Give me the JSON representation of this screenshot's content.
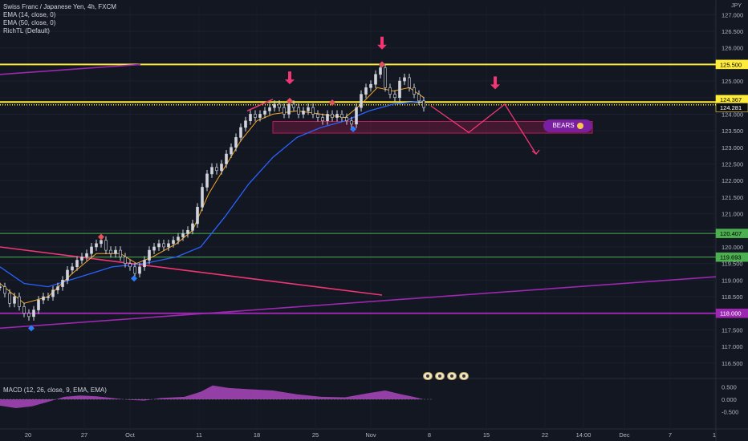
{
  "legend": {
    "symbol": "Swiss Franc / Japanese Yen, 4h, FXCM",
    "ema14": "EMA (14, close, 0)",
    "ema50": "EMA (50, close, 0)",
    "richtl": "RichTL (Default)",
    "macd": "MACD (12, 26, close, 9, EMA, EMA)"
  },
  "currency": "JPY",
  "annotation": {
    "bears_label": "BEARS"
  },
  "price_tags": [
    {
      "text": "125.500",
      "kind": "yellow"
    },
    {
      "text": "124.367",
      "kind": "yellow"
    },
    {
      "text": "124.281",
      "kind": "dark"
    },
    {
      "text": "120.407",
      "kind": "green"
    },
    {
      "text": "119.693",
      "kind": "green"
    },
    {
      "text": "118.000",
      "kind": "purple"
    }
  ],
  "colors": {
    "background": "#131722",
    "up": "#d1d4dc",
    "ema14": "#f5a623",
    "ema50": "#2962ff",
    "yellow": "#ffeb3b",
    "green": "#4caf50",
    "purple": "#9c27b0",
    "pink": "#f23674",
    "macd_hist": "#ab47bc"
  },
  "chart_data": {
    "type": "line",
    "title": "Swiss Franc / Japanese Yen, 4h, FXCM",
    "x_ticks": [
      "20",
      "27",
      "Oct",
      "11",
      "18",
      "25",
      "Nov",
      "8",
      "15",
      "22",
      "14:00",
      "Dec",
      "7",
      "1"
    ],
    "y_ticks": [
      "127.000",
      "126.500",
      "126.000",
      "125.500",
      "125.000",
      "124.500",
      "124.000",
      "123.500",
      "123.000",
      "122.500",
      "122.000",
      "121.500",
      "121.000",
      "120.500",
      "120.000",
      "119.500",
      "119.000",
      "118.500",
      "118.000",
      "117.500",
      "117.000",
      "116.500"
    ],
    "ylim": [
      116.35,
      127.2
    ],
    "macd_ticks": [
      "0.500",
      "0.000",
      "-0.500"
    ],
    "macd_ylim": [
      -0.7,
      0.7
    ],
    "levels": [
      {
        "value": 125.5,
        "label": "125.500",
        "color": "yellow"
      },
      {
        "value": 124.367,
        "label": "124.367",
        "color": "yellow"
      },
      {
        "value": 124.281,
        "label": "124.281",
        "color": "yellow",
        "style": "dotted"
      },
      {
        "value": 120.407,
        "label": "120.407",
        "color": "green"
      },
      {
        "value": 119.693,
        "label": "119.693",
        "color": "green"
      },
      {
        "value": 118.0,
        "label": "118.000",
        "color": "purple"
      }
    ],
    "price_path": [
      {
        "x": 0,
        "y": 118.8
      },
      {
        "x": 6,
        "y": 118.6
      },
      {
        "x": 12,
        "y": 118.3
      },
      {
        "x": 18,
        "y": 118.5
      },
      {
        "x": 24,
        "y": 118.2
      },
      {
        "x": 30,
        "y": 118.0
      },
      {
        "x": 36,
        "y": 117.9
      },
      {
        "x": 42,
        "y": 118.1
      },
      {
        "x": 48,
        "y": 118.4
      },
      {
        "x": 54,
        "y": 118.5
      },
      {
        "x": 60,
        "y": 118.5
      },
      {
        "x": 66,
        "y": 118.7
      },
      {
        "x": 72,
        "y": 118.8
      },
      {
        "x": 78,
        "y": 119.0
      },
      {
        "x": 84,
        "y": 119.3
      },
      {
        "x": 90,
        "y": 119.4
      },
      {
        "x": 96,
        "y": 119.6
      },
      {
        "x": 102,
        "y": 119.7
      },
      {
        "x": 108,
        "y": 119.8
      },
      {
        "x": 114,
        "y": 120.0
      },
      {
        "x": 120,
        "y": 120.1
      },
      {
        "x": 126,
        "y": 120.2
      },
      {
        "x": 132,
        "y": 119.9
      },
      {
        "x": 138,
        "y": 119.8
      },
      {
        "x": 144,
        "y": 119.9
      },
      {
        "x": 150,
        "y": 119.7
      },
      {
        "x": 156,
        "y": 119.5
      },
      {
        "x": 162,
        "y": 119.4
      },
      {
        "x": 168,
        "y": 119.2
      },
      {
        "x": 174,
        "y": 119.4
      },
      {
        "x": 180,
        "y": 119.6
      },
      {
        "x": 186,
        "y": 119.9
      },
      {
        "x": 192,
        "y": 120.0
      },
      {
        "x": 198,
        "y": 120.1
      },
      {
        "x": 204,
        "y": 120.0
      },
      {
        "x": 210,
        "y": 120.1
      },
      {
        "x": 216,
        "y": 120.2
      },
      {
        "x": 222,
        "y": 120.3
      },
      {
        "x": 228,
        "y": 120.4
      },
      {
        "x": 234,
        "y": 120.5
      },
      {
        "x": 240,
        "y": 120.7
      },
      {
        "x": 246,
        "y": 121.2
      },
      {
        "x": 252,
        "y": 121.8
      },
      {
        "x": 258,
        "y": 122.2
      },
      {
        "x": 264,
        "y": 122.4
      },
      {
        "x": 270,
        "y": 122.3
      },
      {
        "x": 276,
        "y": 122.5
      },
      {
        "x": 282,
        "y": 122.8
      },
      {
        "x": 288,
        "y": 123.0
      },
      {
        "x": 294,
        "y": 123.3
      },
      {
        "x": 300,
        "y": 123.6
      },
      {
        "x": 306,
        "y": 123.8
      },
      {
        "x": 312,
        "y": 124.0
      },
      {
        "x": 318,
        "y": 123.9
      },
      {
        "x": 324,
        "y": 124.0
      },
      {
        "x": 330,
        "y": 124.1
      },
      {
        "x": 336,
        "y": 124.2
      },
      {
        "x": 342,
        "y": 124.3
      },
      {
        "x": 348,
        "y": 124.2
      },
      {
        "x": 354,
        "y": 124.0
      },
      {
        "x": 360,
        "y": 124.3
      },
      {
        "x": 366,
        "y": 124.2
      },
      {
        "x": 372,
        "y": 124.0
      },
      {
        "x": 378,
        "y": 124.1
      },
      {
        "x": 384,
        "y": 124.2
      },
      {
        "x": 390,
        "y": 124.0
      },
      {
        "x": 396,
        "y": 123.9
      },
      {
        "x": 402,
        "y": 123.8
      },
      {
        "x": 408,
        "y": 124.0
      },
      {
        "x": 414,
        "y": 123.9
      },
      {
        "x": 420,
        "y": 124.0
      },
      {
        "x": 426,
        "y": 123.9
      },
      {
        "x": 432,
        "y": 123.8
      },
      {
        "x": 438,
        "y": 123.7
      },
      {
        "x": 444,
        "y": 124.2
      },
      {
        "x": 450,
        "y": 124.6
      },
      {
        "x": 456,
        "y": 124.8
      },
      {
        "x": 462,
        "y": 124.9
      },
      {
        "x": 468,
        "y": 125.2
      },
      {
        "x": 474,
        "y": 125.4
      },
      {
        "x": 480,
        "y": 124.8
      },
      {
        "x": 486,
        "y": 124.6
      },
      {
        "x": 492,
        "y": 124.5
      },
      {
        "x": 498,
        "y": 125.0
      },
      {
        "x": 504,
        "y": 125.1
      },
      {
        "x": 510,
        "y": 124.8
      },
      {
        "x": 516,
        "y": 124.6
      },
      {
        "x": 522,
        "y": 124.4
      },
      {
        "x": 528,
        "y": 124.2
      }
    ],
    "ema14_path": [
      {
        "x": 0,
        "y": 118.9
      },
      {
        "x": 30,
        "y": 118.3
      },
      {
        "x": 60,
        "y": 118.5
      },
      {
        "x": 90,
        "y": 119.2
      },
      {
        "x": 120,
        "y": 119.8
      },
      {
        "x": 150,
        "y": 119.8
      },
      {
        "x": 170,
        "y": 119.5
      },
      {
        "x": 190,
        "y": 119.7
      },
      {
        "x": 220,
        "y": 120.1
      },
      {
        "x": 240,
        "y": 120.5
      },
      {
        "x": 260,
        "y": 121.6
      },
      {
        "x": 280,
        "y": 122.4
      },
      {
        "x": 300,
        "y": 123.2
      },
      {
        "x": 320,
        "y": 123.8
      },
      {
        "x": 340,
        "y": 124.0
      },
      {
        "x": 370,
        "y": 124.1
      },
      {
        "x": 400,
        "y": 124.0
      },
      {
        "x": 430,
        "y": 123.9
      },
      {
        "x": 450,
        "y": 124.3
      },
      {
        "x": 470,
        "y": 124.8
      },
      {
        "x": 490,
        "y": 124.7
      },
      {
        "x": 510,
        "y": 124.8
      },
      {
        "x": 528,
        "y": 124.5
      }
    ],
    "ema50_path": [
      {
        "x": 0,
        "y": 119.4
      },
      {
        "x": 30,
        "y": 118.9
      },
      {
        "x": 60,
        "y": 118.8
      },
      {
        "x": 100,
        "y": 119.1
      },
      {
        "x": 140,
        "y": 119.4
      },
      {
        "x": 180,
        "y": 119.5
      },
      {
        "x": 220,
        "y": 119.7
      },
      {
        "x": 250,
        "y": 120.0
      },
      {
        "x": 280,
        "y": 120.9
      },
      {
        "x": 310,
        "y": 121.9
      },
      {
        "x": 340,
        "y": 122.7
      },
      {
        "x": 370,
        "y": 123.3
      },
      {
        "x": 400,
        "y": 123.6
      },
      {
        "x": 430,
        "y": 123.8
      },
      {
        "x": 460,
        "y": 124.1
      },
      {
        "x": 490,
        "y": 124.3
      },
      {
        "x": 528,
        "y": 124.4
      }
    ],
    "trendlines": [
      {
        "color": "purple",
        "points": [
          {
            "x": 0,
            "y": 125.2
          },
          {
            "x": 175,
            "y": 125.5
          }
        ]
      },
      {
        "color": "pink",
        "points": [
          {
            "x": 0,
            "y": 120.0
          },
          {
            "x": 476,
            "y": 118.55
          }
        ]
      },
      {
        "color": "purple",
        "points": [
          {
            "x": 0,
            "y": 117.55
          },
          {
            "x": 892,
            "y": 119.1
          }
        ]
      },
      {
        "color": "pink",
        "points": [
          {
            "x": 308,
            "y": 124.1
          },
          {
            "x": 340,
            "y": 124.45
          }
        ]
      }
    ],
    "projection": [
      {
        "x": 537,
        "y": 124.25
      },
      {
        "x": 584,
        "y": 123.45
      },
      {
        "x": 629,
        "y": 124.3
      },
      {
        "x": 668,
        "y": 122.8
      }
    ],
    "zone": {
      "x1": 340,
      "x2": 738,
      "y1": 123.78,
      "y2": 123.43
    },
    "markers": [
      {
        "kind": "pink-arrow",
        "x": 476,
        "y": 125.95
      },
      {
        "kind": "pink-arrow",
        "x": 361,
        "y": 124.9
      },
      {
        "kind": "pink-arrow",
        "x": 617,
        "y": 124.75
      },
      {
        "kind": "red-diamond",
        "x": 476,
        "y": 125.5
      },
      {
        "kind": "red-diamond",
        "x": 361,
        "y": 124.4
      },
      {
        "kind": "red-diamond",
        "x": 414,
        "y": 124.35
      },
      {
        "kind": "red-diamond",
        "x": 126,
        "y": 120.3
      },
      {
        "kind": "blue-diamond",
        "x": 440,
        "y": 123.55
      },
      {
        "kind": "blue-diamond",
        "x": 167,
        "y": 119.05
      },
      {
        "kind": "blue-diamond",
        "x": 39,
        "y": 117.55
      }
    ],
    "macd_hist": [
      {
        "x": 0,
        "y": -0.25
      },
      {
        "x": 20,
        "y": -0.35
      },
      {
        "x": 40,
        "y": -0.28
      },
      {
        "x": 60,
        "y": -0.1
      },
      {
        "x": 80,
        "y": 0.1
      },
      {
        "x": 100,
        "y": 0.15
      },
      {
        "x": 120,
        "y": 0.12
      },
      {
        "x": 140,
        "y": 0.05
      },
      {
        "x": 160,
        "y": -0.02
      },
      {
        "x": 180,
        "y": -0.05
      },
      {
        "x": 200,
        "y": 0.05
      },
      {
        "x": 230,
        "y": 0.1
      },
      {
        "x": 250,
        "y": 0.3
      },
      {
        "x": 265,
        "y": 0.55
      },
      {
        "x": 285,
        "y": 0.45
      },
      {
        "x": 310,
        "y": 0.4
      },
      {
        "x": 340,
        "y": 0.35
      },
      {
        "x": 370,
        "y": 0.2
      },
      {
        "x": 400,
        "y": 0.1
      },
      {
        "x": 430,
        "y": 0.08
      },
      {
        "x": 460,
        "y": 0.25
      },
      {
        "x": 480,
        "y": 0.35
      },
      {
        "x": 500,
        "y": 0.2
      },
      {
        "x": 515,
        "y": 0.1
      },
      {
        "x": 528,
        "y": 0.0
      }
    ]
  }
}
